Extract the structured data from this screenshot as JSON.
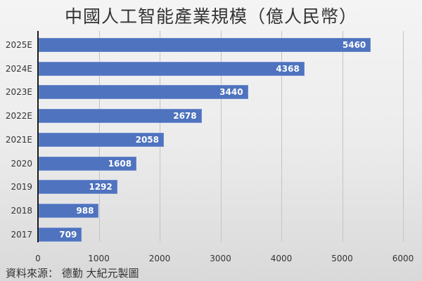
{
  "title": "中國人工智能產業規模（億人民幣）",
  "source": "資料來源： 德勤 大紀元製圖",
  "chart_data": {
    "type": "bar",
    "orientation": "horizontal",
    "title": "中國人工智能產業規模（億人民幣）",
    "categories": [
      "2025E",
      "2024E",
      "2023E",
      "2022E",
      "2021E",
      "2020",
      "2019",
      "2018",
      "2017"
    ],
    "values": [
      5460,
      4368,
      3440,
      2678,
      2058,
      1608,
      1292,
      988,
      709
    ],
    "xlabel": "",
    "ylabel": "",
    "xlim": [
      0,
      6000
    ],
    "xticks": [
      "0",
      "1000",
      "2000",
      "3000",
      "4000",
      "5000",
      "6000"
    ],
    "grid": true,
    "data_labels": true,
    "bar_color": "#4f73be",
    "annotation": "資料來源： 德勤 大紀元製圖"
  }
}
